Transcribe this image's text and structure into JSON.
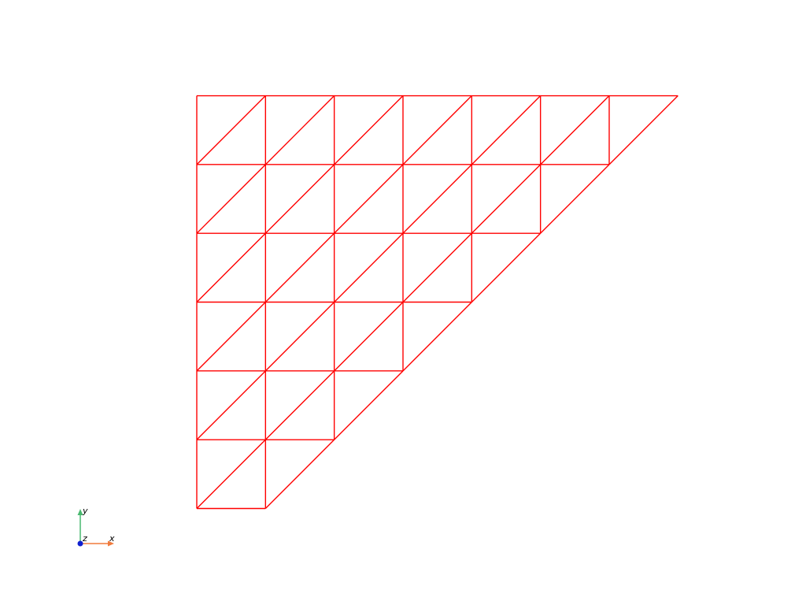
{
  "mesh": {
    "divisions": 6,
    "edge_color": "#ff0000",
    "description_shape": "lower-right staircase triangular mesh"
  },
  "axes_widget": {
    "x_label": "x",
    "y_label": "y",
    "z_label": "z",
    "x_color": "#f07a3c",
    "y_color": "#49b86f",
    "z_color": "#1020d0"
  }
}
